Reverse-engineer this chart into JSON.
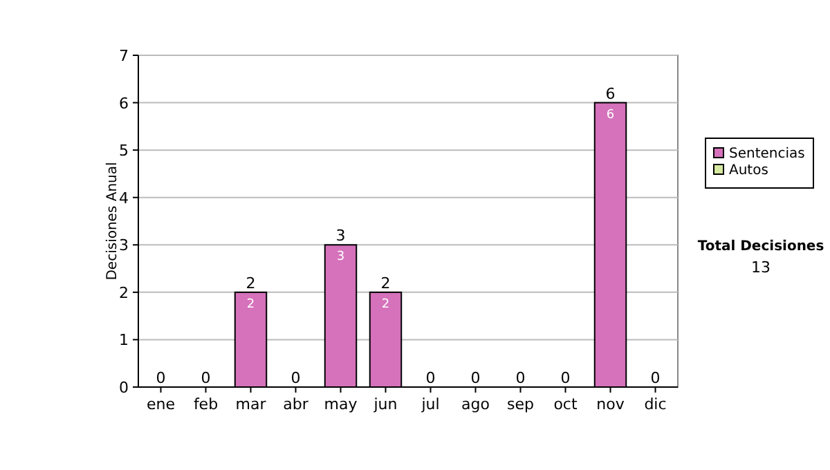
{
  "chart_data": {
    "type": "bar",
    "ylabel": "Decisiones Anual",
    "categories": [
      "ene",
      "feb",
      "mar",
      "abr",
      "may",
      "jun",
      "jul",
      "ago",
      "sep",
      "oct",
      "nov",
      "dic"
    ],
    "series": [
      {
        "name": "Sentencias",
        "color": "#d572bb",
        "values": [
          0,
          0,
          2,
          0,
          3,
          2,
          0,
          0,
          0,
          0,
          6,
          0
        ],
        "value_labels": [
          null,
          null,
          "2",
          null,
          "3",
          "2",
          null,
          null,
          null,
          null,
          "6",
          null
        ]
      },
      {
        "name": "Autos",
        "color": "#d6e9a0",
        "values": [
          0,
          0,
          0,
          0,
          0,
          0,
          0,
          0,
          0,
          0,
          0,
          0
        ]
      }
    ],
    "stacked": true,
    "totals": [
      "0",
      "0",
      "2",
      "0",
      "3",
      "2",
      "0",
      "0",
      "0",
      "0",
      "6",
      "0"
    ],
    "ylim": [
      0,
      7
    ],
    "yticks": [
      0,
      1,
      2,
      3,
      4,
      5,
      6,
      7
    ],
    "grid": "y",
    "legend": "right",
    "annotations": [
      "Total Decisiones",
      "13"
    ]
  }
}
